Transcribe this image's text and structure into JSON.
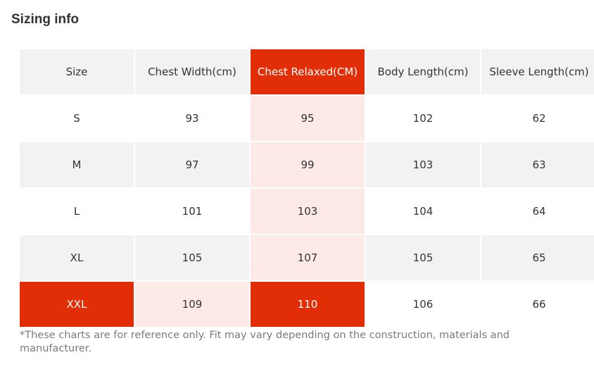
{
  "title": "Sizing info",
  "table": {
    "headers": [
      "Size",
      "Chest Width(cm)",
      "Chest Relaxed(CM)",
      "Body Length(cm)",
      "Sleeve Length(cm)"
    ],
    "rows": [
      [
        "S",
        "93",
        "95",
        "102",
        "62"
      ],
      [
        "M",
        "97",
        "99",
        "103",
        "63"
      ],
      [
        "L",
        "101",
        "103",
        "104",
        "64"
      ],
      [
        "XL",
        "105",
        "107",
        "105",
        "65"
      ],
      [
        "XXL",
        "109",
        "110",
        "106",
        "66"
      ]
    ],
    "highlighted_column": "Chest Relaxed(CM)",
    "highlighted_row": "XXL"
  },
  "colors": {
    "highlight": "#e22e07",
    "highlight_tint": "#fdeae6",
    "header_bg": "#f2f2f2",
    "stripe_bg": "#f2f2f2",
    "text": "#333333",
    "note_text": "#7a7a7a"
  },
  "note": "*These charts are for reference only. Fit may vary depending on the construction, materials and manufacturer."
}
